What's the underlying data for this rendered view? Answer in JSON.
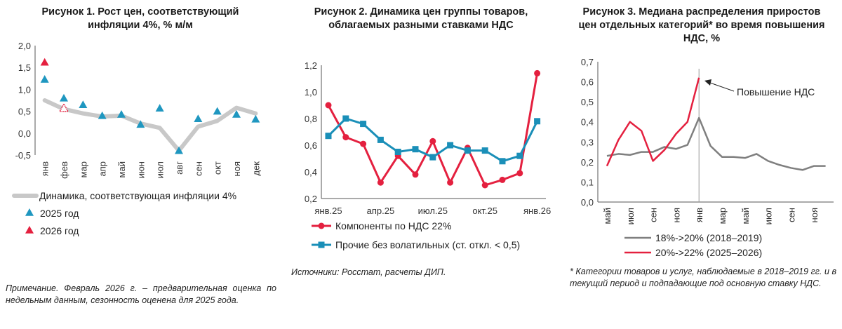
{
  "figures": {
    "fig1": {
      "title": "Рисунок 1. Рост цен, соответствующий\nинфляции 4%, % м/м",
      "legend": [
        "Динамика, соответствующая инфляции 4%",
        "2025 год",
        "2026 год"
      ],
      "note": "Примечание. Февраль 2026 г. – предварительная оценка по недельным данным, сезонность оценена для 2025 года."
    },
    "fig2": {
      "title": "Рисунок 2. Динамика цен группы товаров,\nоблагаемых разными ставками НДС",
      "legend": [
        "Компоненты по НДС 22%",
        "Прочие без волатильных (ст. откл. < 0,5)"
      ],
      "note": "Источники: Росстат, расчеты ДИП."
    },
    "fig3": {
      "title": "Рисунок 3. Медиана распределения приростов\nцен отдельных категорий* во время повышения\nНДС, %",
      "legend": [
        "18%->20% (2018–2019)",
        "20%->22% (2025–2026)"
      ],
      "annotation": "Повышение НДС",
      "note": "* Категории товаров и услуг, наблюдаемые в 2018–2019 гг. и в текущий период и подпадающие под основную ставку НДС."
    }
  },
  "colors": {
    "gray_line": "#c8c8c8",
    "teal": "#1f97c0",
    "red": "#e4203f",
    "blue": "#1a8fb8",
    "dark_gray": "#7f7f7f"
  },
  "chart_data": [
    {
      "type": "line",
      "title": "Рисунок 1. Рост цен, соответствующий инфляции 4%, % м/м",
      "categories": [
        "янв",
        "фев",
        "мар",
        "апр",
        "май",
        "июн",
        "июл",
        "авг",
        "сен",
        "окт",
        "ноя",
        "дек"
      ],
      "ylim": [
        -0.5,
        2.0
      ],
      "yticks": [
        "2,0",
        "1,5",
        "1,0",
        "0,5",
        "0,0",
        "-0,5"
      ],
      "series": [
        {
          "name": "Динамика, соответствующая инфляции 4%",
          "type": "line",
          "values": [
            0.75,
            0.55,
            0.45,
            0.38,
            0.4,
            0.22,
            0.12,
            -0.4,
            0.15,
            0.28,
            0.58,
            0.45
          ]
        },
        {
          "name": "2025 год",
          "type": "scatter",
          "values": [
            1.23,
            0.8,
            0.65,
            0.4,
            0.43,
            0.2,
            0.57,
            -0.4,
            0.33,
            0.5,
            0.43,
            0.32
          ]
        },
        {
          "name": "2026 год",
          "type": "scatter",
          "values": [
            1.62,
            0.57,
            null,
            null,
            null,
            null,
            null,
            null,
            null,
            null,
            null,
            null
          ]
        }
      ]
    },
    {
      "type": "line",
      "title": "Рисунок 2. Динамика цен группы товаров, облагаемых разными ставками НДС",
      "x_ticks": [
        "янв.25",
        "апр.25",
        "июл.25",
        "окт.25",
        "янв.26"
      ],
      "ylim": [
        0.2,
        1.2
      ],
      "yticks": [
        "1,2",
        "1,0",
        "0,8",
        "0,6",
        "0,4",
        "0,2"
      ],
      "series": [
        {
          "name": "Компоненты по НДС 22%",
          "values": [
            0.9,
            0.66,
            0.61,
            0.32,
            0.52,
            0.38,
            0.63,
            0.32,
            0.58,
            0.3,
            0.34,
            0.39,
            1.14
          ]
        },
        {
          "name": "Прочие без волатильных (ст. откл. < 0,5)",
          "values": [
            0.67,
            0.8,
            0.76,
            0.64,
            0.55,
            0.57,
            0.51,
            0.6,
            0.56,
            0.56,
            0.48,
            0.52,
            0.78
          ]
        }
      ]
    },
    {
      "type": "line",
      "title": "Рисунок 3. Медиана распределения приростов цен отдельных категорий* во время повышения НДС, %",
      "x_ticks": [
        "май",
        "июл",
        "сен",
        "ноя",
        "янв",
        "мар",
        "май",
        "июл",
        "сен",
        "ноя"
      ],
      "ylim": [
        0.0,
        0.7
      ],
      "yticks": [
        "0,7",
        "0,6",
        "0,5",
        "0,4",
        "0,3",
        "0,2",
        "0,1",
        "0,0"
      ],
      "series": [
        {
          "name": "18%->20% (2018–2019)",
          "values": [
            0.23,
            0.24,
            0.235,
            0.25,
            0.25,
            0.275,
            0.265,
            0.285,
            0.42,
            0.28,
            0.225,
            0.225,
            0.22,
            0.24,
            0.205,
            0.185,
            0.17,
            0.16,
            0.18,
            0.18
          ]
        },
        {
          "name": "20%->22% (2025–2026)",
          "values": [
            0.18,
            0.31,
            0.4,
            0.355,
            0.205,
            0.26,
            0.34,
            0.4,
            0.62
          ]
        }
      ]
    }
  ]
}
